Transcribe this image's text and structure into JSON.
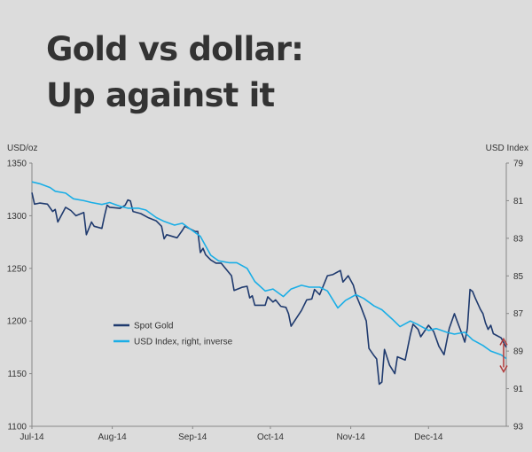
{
  "title_lines": [
    "Gold vs dollar:",
    "Up against it"
  ],
  "colors": {
    "background": "#dcdcdc",
    "gold": "#1f3a6e",
    "usd": "#1aaee6",
    "arrow": "#b03a3a",
    "axis": "#888888"
  },
  "chart_data": {
    "type": "line",
    "xlabel": "",
    "left_axis_label": "USD/oz",
    "right_axis_label": "USD Index",
    "left_ylim": [
      1100,
      1350
    ],
    "right_ylim": [
      79,
      93
    ],
    "right_inverted": true,
    "left_ticks": [
      "1350",
      "1300",
      "1250",
      "1200",
      "1150",
      "1100"
    ],
    "right_ticks": [
      "79",
      "81",
      "83",
      "85",
      "87",
      "89",
      "91",
      "93"
    ],
    "x_ticks": [
      "Jul-14",
      "Aug-14",
      "Sep-14",
      "Oct-14",
      "Nov-14",
      "Dec-14"
    ],
    "x_range": [
      "2014-07-01",
      "2014-12-31"
    ],
    "legend_placement": "center-left",
    "annotation": "double-headed arrow between the two series at the end of December",
    "series": [
      {
        "name": "Spot Gold",
        "axis": "left",
        "points": [
          [
            "2014-07-01",
            1322
          ],
          [
            "2014-07-02",
            1311
          ],
          [
            "2014-07-04",
            1312
          ],
          [
            "2014-07-07",
            1311
          ],
          [
            "2014-07-09",
            1304
          ],
          [
            "2014-07-10",
            1306
          ],
          [
            "2014-07-11",
            1294
          ],
          [
            "2014-07-14",
            1308
          ],
          [
            "2014-07-16",
            1305
          ],
          [
            "2014-07-18",
            1300
          ],
          [
            "2014-07-21",
            1303
          ],
          [
            "2014-07-22",
            1282
          ],
          [
            "2014-07-24",
            1294
          ],
          [
            "2014-07-25",
            1290
          ],
          [
            "2014-07-28",
            1288
          ],
          [
            "2014-07-29",
            1300
          ],
          [
            "2014-07-30",
            1310
          ],
          [
            "2014-07-31",
            1308
          ],
          [
            "2014-08-04",
            1307
          ],
          [
            "2014-08-06",
            1310
          ],
          [
            "2014-08-07",
            1315
          ],
          [
            "2014-08-08",
            1314
          ],
          [
            "2014-08-09",
            1304
          ],
          [
            "2014-08-12",
            1302
          ],
          [
            "2014-08-15",
            1298
          ],
          [
            "2014-08-18",
            1295
          ],
          [
            "2014-08-20",
            1290
          ],
          [
            "2014-08-21",
            1278
          ],
          [
            "2014-08-22",
            1282
          ],
          [
            "2014-08-26",
            1279
          ],
          [
            "2014-08-28",
            1286
          ],
          [
            "2014-08-29",
            1290
          ],
          [
            "2014-09-02",
            1285
          ],
          [
            "2014-09-03",
            1285
          ],
          [
            "2014-09-04",
            1265
          ],
          [
            "2014-09-05",
            1269
          ],
          [
            "2014-09-06",
            1263
          ],
          [
            "2014-09-08",
            1258
          ],
          [
            "2014-09-10",
            1255
          ],
          [
            "2014-09-12",
            1255
          ],
          [
            "2014-09-15",
            1246
          ],
          [
            "2014-09-16",
            1243
          ],
          [
            "2014-09-17",
            1229
          ],
          [
            "2014-09-20",
            1232
          ],
          [
            "2014-09-22",
            1233
          ],
          [
            "2014-09-23",
            1222
          ],
          [
            "2014-09-24",
            1224
          ],
          [
            "2014-09-25",
            1215
          ],
          [
            "2014-09-29",
            1215
          ],
          [
            "2014-09-30",
            1223
          ],
          [
            "2014-10-02",
            1218
          ],
          [
            "2014-10-03",
            1220
          ],
          [
            "2014-10-05",
            1214
          ],
          [
            "2014-10-07",
            1213
          ],
          [
            "2014-10-08",
            1207
          ],
          [
            "2014-10-09",
            1195
          ],
          [
            "2014-10-13",
            1210
          ],
          [
            "2014-10-15",
            1220
          ],
          [
            "2014-10-17",
            1221
          ],
          [
            "2014-10-18",
            1230
          ],
          [
            "2014-10-20",
            1225
          ],
          [
            "2014-10-22",
            1237
          ],
          [
            "2014-10-23",
            1243
          ],
          [
            "2014-10-25",
            1244
          ],
          [
            "2014-10-28",
            1248
          ],
          [
            "2014-10-29",
            1237
          ],
          [
            "2014-10-31",
            1243
          ],
          [
            "2014-11-02",
            1234
          ],
          [
            "2014-11-03",
            1225
          ],
          [
            "2014-11-05",
            1213
          ],
          [
            "2014-11-07",
            1200
          ],
          [
            "2014-11-08",
            1174
          ],
          [
            "2014-11-10",
            1167
          ],
          [
            "2014-11-11",
            1164
          ],
          [
            "2014-11-12",
            1140
          ],
          [
            "2014-11-13",
            1142
          ],
          [
            "2014-11-14",
            1173
          ],
          [
            "2014-11-16",
            1158
          ],
          [
            "2014-11-18",
            1150
          ],
          [
            "2014-11-19",
            1166
          ],
          [
            "2014-11-22",
            1163
          ],
          [
            "2014-11-24",
            1187
          ],
          [
            "2014-11-25",
            1197
          ],
          [
            "2014-11-27",
            1192
          ],
          [
            "2014-11-28",
            1185
          ],
          [
            "2014-12-01",
            1196
          ],
          [
            "2014-12-03",
            1190
          ],
          [
            "2014-12-05",
            1176
          ],
          [
            "2014-12-07",
            1168
          ],
          [
            "2014-12-09",
            1193
          ],
          [
            "2014-12-11",
            1207
          ],
          [
            "2014-12-12",
            1200
          ],
          [
            "2014-12-14",
            1187
          ],
          [
            "2014-12-15",
            1180
          ],
          [
            "2014-12-16",
            1193
          ],
          [
            "2014-12-17",
            1230
          ],
          [
            "2014-12-18",
            1228
          ],
          [
            "2014-12-19",
            1222
          ],
          [
            "2014-12-21",
            1211
          ],
          [
            "2014-12-22",
            1207
          ],
          [
            "2014-12-23",
            1198
          ],
          [
            "2014-12-24",
            1192
          ],
          [
            "2014-12-25",
            1196
          ],
          [
            "2014-12-26",
            1188
          ],
          [
            "2014-12-29",
            1184
          ],
          [
            "2014-12-31",
            1175
          ]
        ]
      },
      {
        "name": "USD Index, right, inverse",
        "axis": "right",
        "points": [
          [
            "2014-07-01",
            80.0
          ],
          [
            "2014-07-04",
            80.1
          ],
          [
            "2014-07-08",
            80.3
          ],
          [
            "2014-07-10",
            80.5
          ],
          [
            "2014-07-14",
            80.6
          ],
          [
            "2014-07-17",
            80.9
          ],
          [
            "2014-07-21",
            81.0
          ],
          [
            "2014-07-24",
            81.1
          ],
          [
            "2014-07-28",
            81.2
          ],
          [
            "2014-07-31",
            81.1
          ],
          [
            "2014-08-04",
            81.3
          ],
          [
            "2014-08-07",
            81.4
          ],
          [
            "2014-08-11",
            81.4
          ],
          [
            "2014-08-14",
            81.5
          ],
          [
            "2014-08-18",
            81.9
          ],
          [
            "2014-08-21",
            82.1
          ],
          [
            "2014-08-25",
            82.3
          ],
          [
            "2014-08-28",
            82.2
          ],
          [
            "2014-09-01",
            82.6
          ],
          [
            "2014-09-04",
            82.9
          ],
          [
            "2014-09-08",
            83.9
          ],
          [
            "2014-09-11",
            84.2
          ],
          [
            "2014-09-15",
            84.3
          ],
          [
            "2014-09-18",
            84.3
          ],
          [
            "2014-09-22",
            84.6
          ],
          [
            "2014-09-25",
            85.3
          ],
          [
            "2014-09-29",
            85.8
          ],
          [
            "2014-10-02",
            85.7
          ],
          [
            "2014-10-06",
            86.1
          ],
          [
            "2014-10-09",
            85.7
          ],
          [
            "2014-10-13",
            85.5
          ],
          [
            "2014-10-16",
            85.6
          ],
          [
            "2014-10-20",
            85.6
          ],
          [
            "2014-10-23",
            85.8
          ],
          [
            "2014-10-27",
            86.7
          ],
          [
            "2014-10-30",
            86.3
          ],
          [
            "2014-11-03",
            86.0
          ],
          [
            "2014-11-06",
            86.2
          ],
          [
            "2014-11-10",
            86.6
          ],
          [
            "2014-11-13",
            86.8
          ],
          [
            "2014-11-17",
            87.3
          ],
          [
            "2014-11-20",
            87.7
          ],
          [
            "2014-11-24",
            87.4
          ],
          [
            "2014-11-27",
            87.6
          ],
          [
            "2014-12-01",
            87.9
          ],
          [
            "2014-12-04",
            87.8
          ],
          [
            "2014-12-08",
            88.0
          ],
          [
            "2014-12-11",
            88.1
          ],
          [
            "2014-12-15",
            88.0
          ],
          [
            "2014-12-18",
            88.4
          ],
          [
            "2014-12-22",
            88.7
          ],
          [
            "2014-12-25",
            89.0
          ],
          [
            "2014-12-29",
            89.2
          ],
          [
            "2014-12-31",
            89.4
          ]
        ]
      }
    ]
  }
}
